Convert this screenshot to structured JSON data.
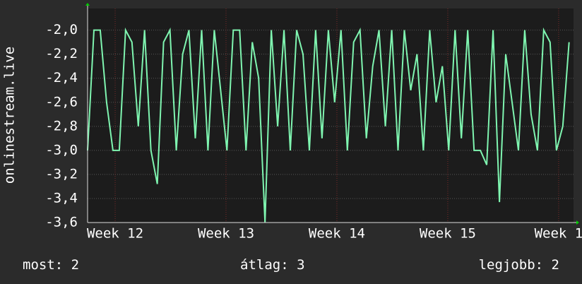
{
  "chart_data": {
    "type": "line",
    "y_label": "onlinestream.live",
    "x": [
      0,
      0.4,
      0.8,
      1.2,
      1.6,
      2.0,
      2.4,
      2.8,
      3.2,
      3.6,
      4.0,
      4.4,
      4.8,
      5.2,
      5.6,
      6.0,
      6.4,
      6.8,
      7.2,
      7.6,
      8.0,
      8.4,
      8.8,
      9.2,
      9.6,
      10.0,
      10.4,
      10.8,
      11.2,
      11.6,
      12.0,
      12.4,
      12.8,
      13.2,
      13.6,
      14.0,
      14.4,
      14.8,
      15.2,
      15.6,
      16.0,
      16.4,
      16.8,
      17.2,
      17.6,
      18.0,
      18.4,
      18.8,
      19.2,
      19.6,
      20.0,
      20.4,
      20.8,
      21.2,
      21.6,
      22.0,
      22.4,
      22.8,
      23.2,
      23.6,
      24.0,
      24.4,
      24.8,
      25.2,
      25.6,
      26.0,
      26.4,
      26.8,
      27.2,
      27.6,
      28.0,
      28.4,
      28.8,
      29.2,
      29.6,
      30.0,
      30.4
    ],
    "series": [
      {
        "color": "#7ff5b0",
        "values": [
          -3.0,
          -2.0,
          -2.0,
          -2.6,
          -3.0,
          -3.0,
          -2.0,
          -2.1,
          -2.8,
          -2.0,
          -3.0,
          -3.28,
          -2.1,
          -2.0,
          -3.0,
          -2.2,
          -2.0,
          -2.9,
          -2.0,
          -3.0,
          -2.0,
          -2.5,
          -3.0,
          -2.0,
          -2.0,
          -3.0,
          -2.1,
          -2.4,
          -3.6,
          -2.0,
          -2.8,
          -2.0,
          -3.0,
          -2.0,
          -2.2,
          -3.0,
          -2.0,
          -2.9,
          -2.0,
          -2.6,
          -2.0,
          -3.0,
          -2.1,
          -2.0,
          -2.9,
          -2.3,
          -2.0,
          -2.8,
          -2.0,
          -3.0,
          -2.0,
          -2.5,
          -2.2,
          -3.0,
          -2.0,
          -2.6,
          -2.3,
          -3.0,
          -2.0,
          -2.9,
          -2.0,
          -3.0,
          -3.0,
          -3.12,
          -2.0,
          -3.43,
          -2.2,
          -2.6,
          -3.0,
          -2.0,
          -2.7,
          -3.0,
          -2.0,
          -2.1,
          -3.0,
          -2.8,
          -2.1
        ]
      }
    ],
    "xlim": [
      0,
      30.68
    ],
    "xticks": [
      {
        "value": 1.74,
        "label": "Week 12"
      },
      {
        "value": 8.74,
        "label": "Week 13"
      },
      {
        "value": 15.74,
        "label": "Week 14"
      },
      {
        "value": 22.74,
        "label": "Week 15"
      },
      {
        "value": 29.74,
        "label": "Week 1"
      }
    ],
    "ylim": [
      -3.6,
      -1.82
    ],
    "yticks": [
      {
        "value": -2.0,
        "label": "-2,0"
      },
      {
        "value": -2.2,
        "label": "-2,2"
      },
      {
        "value": -2.4,
        "label": "-2,4"
      },
      {
        "value": -2.6,
        "label": "-2,6"
      },
      {
        "value": -2.8,
        "label": "-2,8"
      },
      {
        "value": -3.0,
        "label": "-3,0"
      },
      {
        "value": -3.2,
        "label": "-3,2"
      },
      {
        "value": -3.4,
        "label": "-3,4"
      },
      {
        "value": -3.6,
        "label": "-3,6"
      }
    ],
    "grid": true,
    "stats": [
      {
        "label": "most:",
        "value": 2
      },
      {
        "label": "átlag:",
        "value": 3
      },
      {
        "label": "legjobb:",
        "value": 2
      }
    ]
  }
}
